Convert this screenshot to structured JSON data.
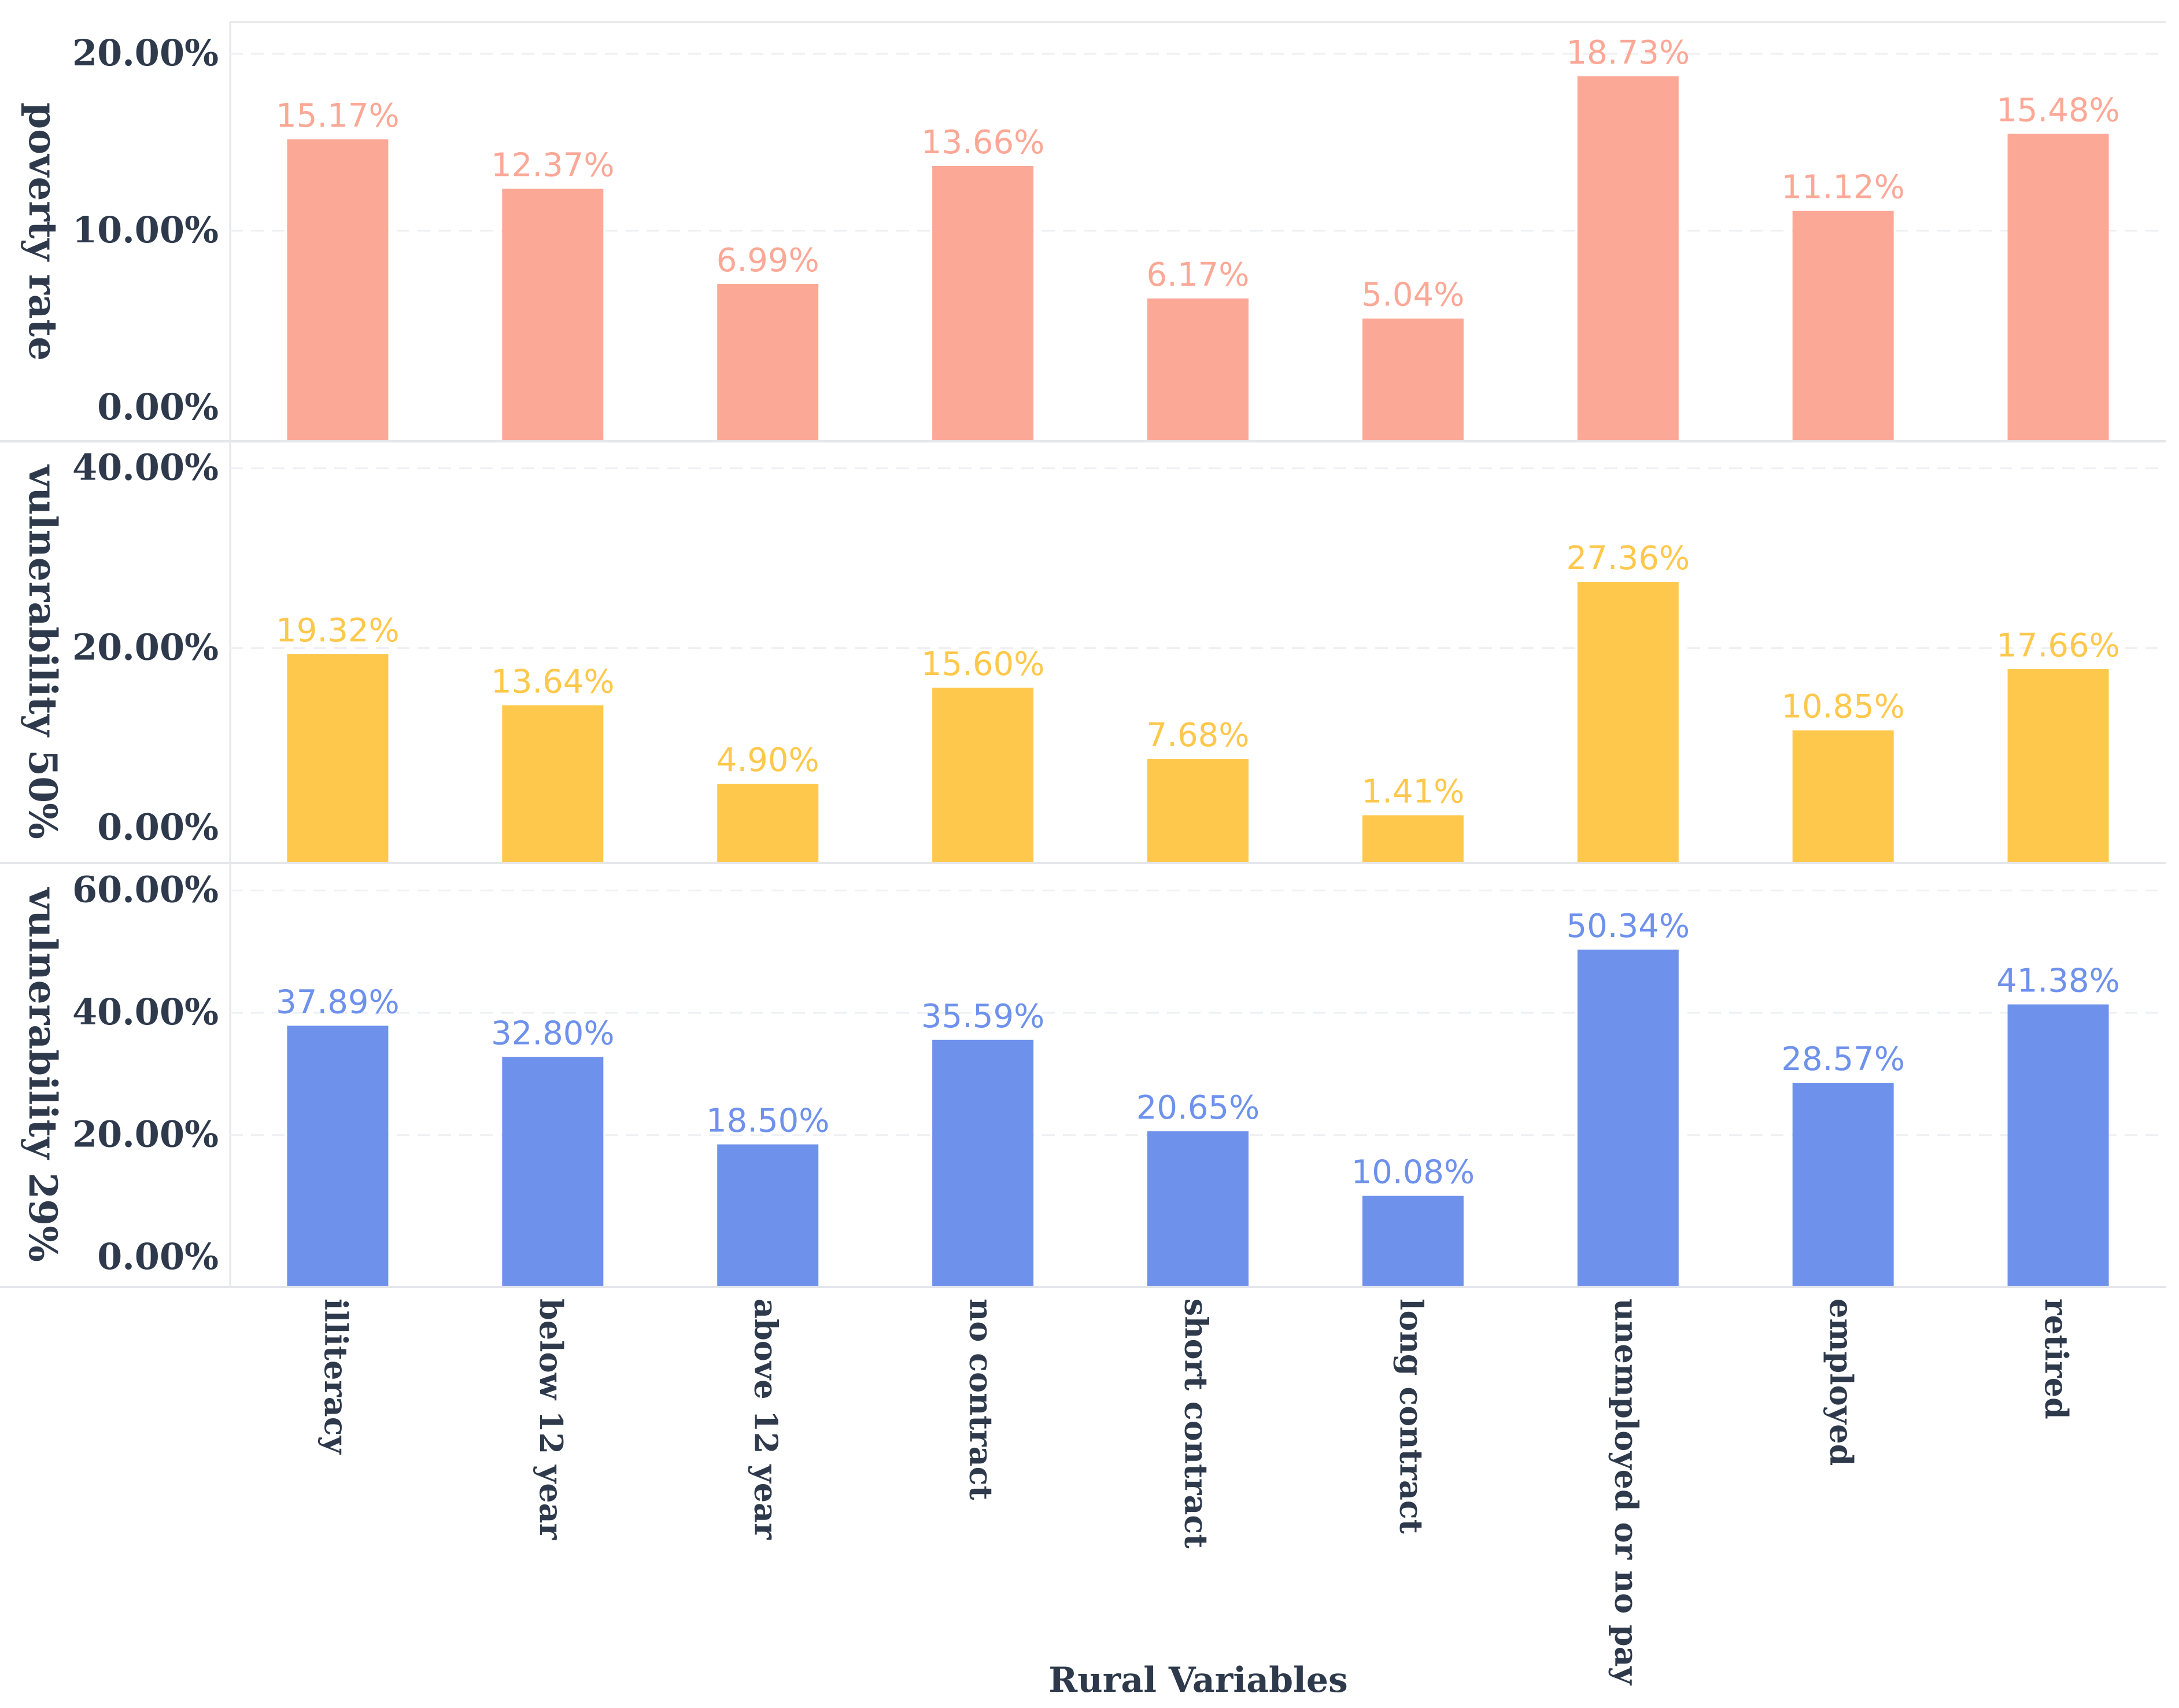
{
  "chart_data": {
    "type": "bar",
    "xlabel": "Rural Variables",
    "categories": [
      "illiteracy",
      "below 12 year",
      "above 12 year",
      "no contract",
      "short contract",
      "long contract",
      "unemployed or no pay",
      "employed",
      "retired"
    ],
    "panels": [
      {
        "name": "poverty rate",
        "ylabel": "poverty rate",
        "color": "#fca897",
        "ylim": [
          -1.9,
          21.8
        ],
        "yticks": [
          0,
          10,
          20
        ],
        "ytick_labels": [
          "0.00%",
          "10.00%",
          "20.00%"
        ],
        "values": [
          15.17,
          12.37,
          6.99,
          13.66,
          6.17,
          5.04,
          18.73,
          11.12,
          15.48
        ],
        "data_labels": [
          "15.17%",
          "12.37%",
          "6.99%",
          "13.66%",
          "6.17%",
          "5.04%",
          "18.73%",
          "11.12%",
          "15.48%"
        ]
      },
      {
        "name": "vulnerability 50%",
        "ylabel": "vulnerability 50%",
        "color": "#fec84c",
        "ylim": [
          -3.9,
          43.0
        ],
        "yticks": [
          0,
          20,
          40
        ],
        "ytick_labels": [
          "0.00%",
          "20.00%",
          "40.00%"
        ],
        "values": [
          19.32,
          13.64,
          4.9,
          15.6,
          7.68,
          1.41,
          27.36,
          10.85,
          17.66
        ],
        "data_labels": [
          "19.32%",
          "13.64%",
          "4.90%",
          "15.60%",
          "7.68%",
          "1.41%",
          "27.36%",
          "10.85%",
          "17.66%"
        ]
      },
      {
        "name": "vulnerability 29%",
        "ylabel": "vulnerability 29%",
        "color": "#6e91ec",
        "ylim": [
          -4.8,
          64.5
        ],
        "yticks": [
          0,
          20,
          40,
          60
        ],
        "ytick_labels": [
          "0.00%",
          "20.00%",
          "40.00%",
          "60.00%"
        ],
        "values": [
          37.89,
          32.8,
          18.5,
          35.59,
          20.65,
          10.08,
          50.34,
          28.57,
          41.38
        ],
        "data_labels": [
          "37.89%",
          "32.80%",
          "18.50%",
          "35.59%",
          "20.65%",
          "10.08%",
          "50.34%",
          "28.57%",
          "41.38%"
        ]
      }
    ]
  }
}
